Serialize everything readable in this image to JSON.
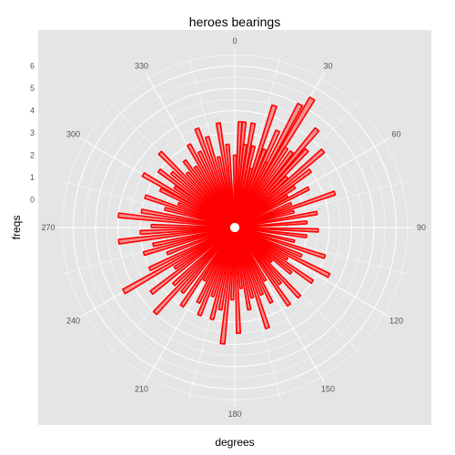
{
  "chart_data": {
    "type": "bar",
    "coordinate_system": "polar",
    "title": "heroes bearings",
    "xlabel": "degrees",
    "ylabel": "freqs",
    "angle_unit": "degrees",
    "angle_range": [
      0,
      360
    ],
    "angle_ticks": [
      "0",
      "30",
      "60",
      "90",
      "120",
      "150",
      "180",
      "210",
      "240",
      "270",
      "300",
      "330"
    ],
    "radial_range": [
      -1,
      6.8
    ],
    "radial_ticks": [
      "0",
      "1",
      "2",
      "3",
      "4",
      "5",
      "6"
    ],
    "grid": true,
    "legend": "none",
    "bar_color": "#ff0000",
    "panel_color": "#e5e5e5",
    "gridline_color": "#ffffff",
    "series": [
      {
        "x": [
          0,
          3,
          5,
          7,
          10,
          13,
          16,
          18,
          21,
          24,
          26,
          28,
          31,
          33,
          37,
          40,
          43,
          46,
          49,
          53,
          56,
          59,
          62,
          67,
          71,
          75,
          80,
          86,
          92,
          97,
          103,
          108,
          113,
          117,
          121,
          125,
          129,
          133,
          137,
          141,
          145,
          150,
          154,
          158,
          162,
          166,
          170,
          174,
          178,
          182,
          186,
          190,
          194,
          198,
          202,
          206,
          210,
          214,
          219,
          223,
          227,
          232,
          236,
          240,
          244,
          249,
          254,
          258,
          263,
          267,
          271,
          276,
          280,
          285,
          289,
          293,
          297,
          300,
          304,
          307,
          311,
          315,
          319,
          323,
          327,
          331,
          335,
          339,
          343,
          347,
          351,
          355
        ],
        "values": [
          2,
          3.5,
          3.5,
          2.5,
          3.5,
          2.5,
          1.5,
          4.5,
          2.5,
          3.5,
          2,
          5,
          5.5,
          3,
          3,
          4.5,
          3.5,
          2,
          4,
          3,
          2,
          1.5,
          2.5,
          1.5,
          3.5,
          1.5,
          2.5,
          2,
          2.5,
          2,
          1.5,
          3,
          2,
          3.5,
          1.5,
          3,
          2,
          1,
          3,
          2,
          3,
          1.5,
          2.5,
          2,
          3.5,
          2,
          2.5,
          1.5,
          3.5,
          2,
          4,
          2.5,
          3,
          2,
          3,
          2.5,
          1.5,
          3,
          2.5,
          4,
          2.5,
          3.5,
          2,
          4.5,
          3,
          2,
          3,
          2.5,
          4,
          3,
          2.5,
          4,
          3,
          2,
          3,
          1.5,
          2.5,
          3.5,
          2,
          3,
          2.5,
          3.5,
          2,
          2.5,
          2,
          3,
          2.5,
          3.5,
          3,
          2,
          3.5,
          2.5
        ]
      }
    ]
  }
}
